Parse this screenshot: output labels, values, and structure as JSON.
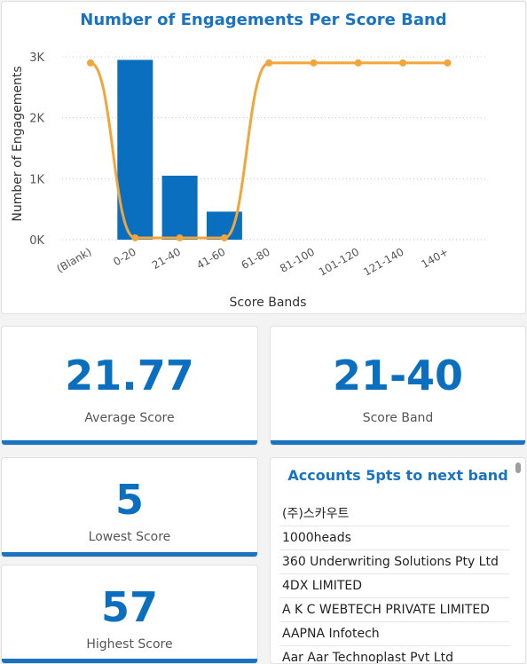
{
  "chart_card": {
    "chart_data": {
      "type": "bar",
      "title": "Number of Engagements Per Score Band",
      "xlabel": "Score Bands",
      "ylabel": "Number of Engagements",
      "categories": [
        "(Blank)",
        "0-20",
        "21-40",
        "41-60",
        "61-80",
        "81-100",
        "101-120",
        "121-140",
        "140+"
      ],
      "ytick_labels": [
        "0K",
        "1K",
        "2K",
        "3K"
      ],
      "ylim": [
        0,
        3000
      ],
      "series": [
        {
          "kind": "bar",
          "values": [
            0,
            2950,
            1050,
            460,
            0,
            0,
            0,
            0,
            0
          ]
        },
        {
          "kind": "line",
          "values": [
            2900,
            30,
            30,
            30,
            2900,
            2900,
            2900,
            2900,
            2900
          ]
        }
      ],
      "colors": {
        "bar": "#0a6fbf",
        "line": "#f2a53a",
        "grid": "#c8c8c8"
      }
    }
  },
  "kpis": {
    "average": {
      "value": "21.77",
      "label": "Average Score"
    },
    "band": {
      "value": "21-40",
      "label": "Score Band"
    },
    "lowest": {
      "value": "5",
      "label": "Lowest Score"
    },
    "highest": {
      "value": "57",
      "label": "Highest Score"
    }
  },
  "accounts": {
    "title": "Accounts 5pts to next band",
    "items": [
      "(주)스카우트",
      "1000heads",
      "360 Underwriting Solutions Pty Ltd",
      "4DX LIMITED",
      "A K C WEBTECH PRIVATE LIMITED",
      "AAPNA Infotech",
      "Aar Aar Technoplast Pvt Ltd"
    ]
  },
  "accent_color": "#1a73c0"
}
